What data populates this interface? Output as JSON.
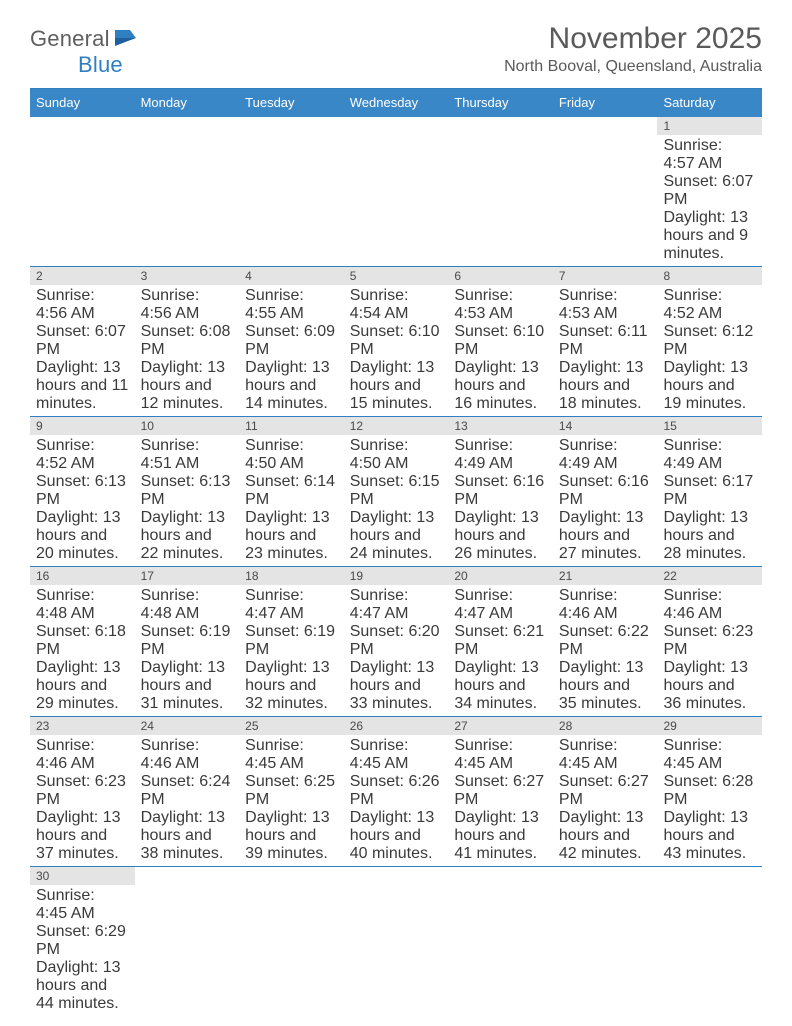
{
  "brand": {
    "name_a": "General",
    "name_b": "Blue"
  },
  "title": "November 2025",
  "location": "North Booval, Queensland, Australia",
  "colors": {
    "header_bg": "#3a87c8",
    "border": "#2f7fc1",
    "daynum_bg": "#e4e4e4",
    "text": "#4a4a4a",
    "page_bg": "#ffffff"
  },
  "fonts": {
    "title_size": 30,
    "location_size": 16,
    "head_size": 13,
    "body_size": 10.2
  },
  "weekdays": [
    "Sunday",
    "Monday",
    "Tuesday",
    "Wednesday",
    "Thursday",
    "Friday",
    "Saturday"
  ],
  "weeks": [
    [
      null,
      null,
      null,
      null,
      null,
      null,
      {
        "n": "1",
        "sr": "Sunrise: 4:57 AM",
        "ss": "Sunset: 6:07 PM",
        "dl": "Daylight: 13 hours and 9 minutes."
      }
    ],
    [
      {
        "n": "2",
        "sr": "Sunrise: 4:56 AM",
        "ss": "Sunset: 6:07 PM",
        "dl": "Daylight: 13 hours and 11 minutes."
      },
      {
        "n": "3",
        "sr": "Sunrise: 4:56 AM",
        "ss": "Sunset: 6:08 PM",
        "dl": "Daylight: 13 hours and 12 minutes."
      },
      {
        "n": "4",
        "sr": "Sunrise: 4:55 AM",
        "ss": "Sunset: 6:09 PM",
        "dl": "Daylight: 13 hours and 14 minutes."
      },
      {
        "n": "5",
        "sr": "Sunrise: 4:54 AM",
        "ss": "Sunset: 6:10 PM",
        "dl": "Daylight: 13 hours and 15 minutes."
      },
      {
        "n": "6",
        "sr": "Sunrise: 4:53 AM",
        "ss": "Sunset: 6:10 PM",
        "dl": "Daylight: 13 hours and 16 minutes."
      },
      {
        "n": "7",
        "sr": "Sunrise: 4:53 AM",
        "ss": "Sunset: 6:11 PM",
        "dl": "Daylight: 13 hours and 18 minutes."
      },
      {
        "n": "8",
        "sr": "Sunrise: 4:52 AM",
        "ss": "Sunset: 6:12 PM",
        "dl": "Daylight: 13 hours and 19 minutes."
      }
    ],
    [
      {
        "n": "9",
        "sr": "Sunrise: 4:52 AM",
        "ss": "Sunset: 6:13 PM",
        "dl": "Daylight: 13 hours and 20 minutes."
      },
      {
        "n": "10",
        "sr": "Sunrise: 4:51 AM",
        "ss": "Sunset: 6:13 PM",
        "dl": "Daylight: 13 hours and 22 minutes."
      },
      {
        "n": "11",
        "sr": "Sunrise: 4:50 AM",
        "ss": "Sunset: 6:14 PM",
        "dl": "Daylight: 13 hours and 23 minutes."
      },
      {
        "n": "12",
        "sr": "Sunrise: 4:50 AM",
        "ss": "Sunset: 6:15 PM",
        "dl": "Daylight: 13 hours and 24 minutes."
      },
      {
        "n": "13",
        "sr": "Sunrise: 4:49 AM",
        "ss": "Sunset: 6:16 PM",
        "dl": "Daylight: 13 hours and 26 minutes."
      },
      {
        "n": "14",
        "sr": "Sunrise: 4:49 AM",
        "ss": "Sunset: 6:16 PM",
        "dl": "Daylight: 13 hours and 27 minutes."
      },
      {
        "n": "15",
        "sr": "Sunrise: 4:49 AM",
        "ss": "Sunset: 6:17 PM",
        "dl": "Daylight: 13 hours and 28 minutes."
      }
    ],
    [
      {
        "n": "16",
        "sr": "Sunrise: 4:48 AM",
        "ss": "Sunset: 6:18 PM",
        "dl": "Daylight: 13 hours and 29 minutes."
      },
      {
        "n": "17",
        "sr": "Sunrise: 4:48 AM",
        "ss": "Sunset: 6:19 PM",
        "dl": "Daylight: 13 hours and 31 minutes."
      },
      {
        "n": "18",
        "sr": "Sunrise: 4:47 AM",
        "ss": "Sunset: 6:19 PM",
        "dl": "Daylight: 13 hours and 32 minutes."
      },
      {
        "n": "19",
        "sr": "Sunrise: 4:47 AM",
        "ss": "Sunset: 6:20 PM",
        "dl": "Daylight: 13 hours and 33 minutes."
      },
      {
        "n": "20",
        "sr": "Sunrise: 4:47 AM",
        "ss": "Sunset: 6:21 PM",
        "dl": "Daylight: 13 hours and 34 minutes."
      },
      {
        "n": "21",
        "sr": "Sunrise: 4:46 AM",
        "ss": "Sunset: 6:22 PM",
        "dl": "Daylight: 13 hours and 35 minutes."
      },
      {
        "n": "22",
        "sr": "Sunrise: 4:46 AM",
        "ss": "Sunset: 6:23 PM",
        "dl": "Daylight: 13 hours and 36 minutes."
      }
    ],
    [
      {
        "n": "23",
        "sr": "Sunrise: 4:46 AM",
        "ss": "Sunset: 6:23 PM",
        "dl": "Daylight: 13 hours and 37 minutes."
      },
      {
        "n": "24",
        "sr": "Sunrise: 4:46 AM",
        "ss": "Sunset: 6:24 PM",
        "dl": "Daylight: 13 hours and 38 minutes."
      },
      {
        "n": "25",
        "sr": "Sunrise: 4:45 AM",
        "ss": "Sunset: 6:25 PM",
        "dl": "Daylight: 13 hours and 39 minutes."
      },
      {
        "n": "26",
        "sr": "Sunrise: 4:45 AM",
        "ss": "Sunset: 6:26 PM",
        "dl": "Daylight: 13 hours and 40 minutes."
      },
      {
        "n": "27",
        "sr": "Sunrise: 4:45 AM",
        "ss": "Sunset: 6:27 PM",
        "dl": "Daylight: 13 hours and 41 minutes."
      },
      {
        "n": "28",
        "sr": "Sunrise: 4:45 AM",
        "ss": "Sunset: 6:27 PM",
        "dl": "Daylight: 13 hours and 42 minutes."
      },
      {
        "n": "29",
        "sr": "Sunrise: 4:45 AM",
        "ss": "Sunset: 6:28 PM",
        "dl": "Daylight: 13 hours and 43 minutes."
      }
    ],
    [
      {
        "n": "30",
        "sr": "Sunrise: 4:45 AM",
        "ss": "Sunset: 6:29 PM",
        "dl": "Daylight: 13 hours and 44 minutes."
      },
      null,
      null,
      null,
      null,
      null,
      null
    ]
  ]
}
